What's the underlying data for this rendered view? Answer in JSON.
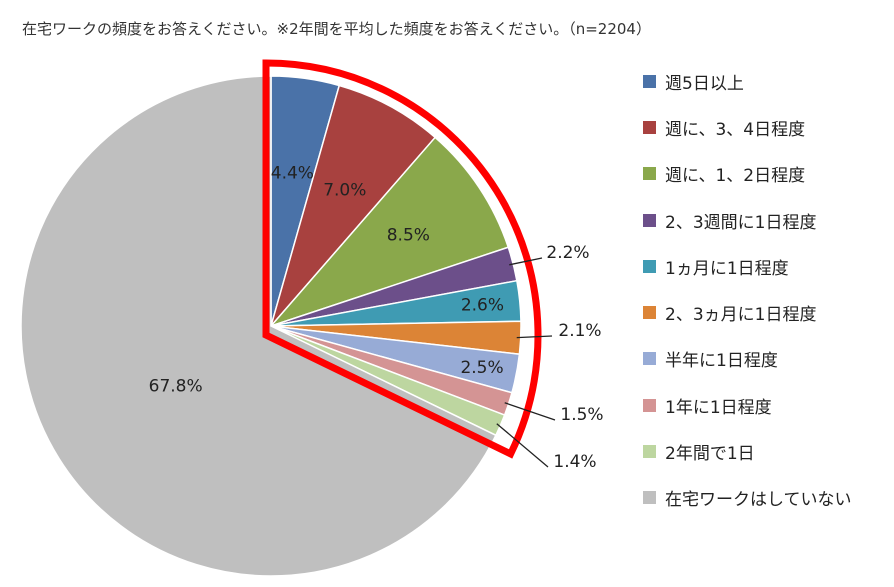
{
  "chart_data": {
    "type": "pie",
    "title": "在宅ワークの頻度をお答えください。※2年間を平均した頻度をお答えください。（n=2204）",
    "start_angle_deg": 0,
    "direction": "clockwise",
    "legend_position": "right",
    "highlight": {
      "color": "#ff0000",
      "covers_categories": [
        0,
        1,
        2,
        3,
        4,
        5,
        6,
        7,
        8
      ]
    },
    "slices": [
      {
        "label": "週5日以上",
        "value": 4.4,
        "display": "4.4%",
        "color": "#4a72a8"
      },
      {
        "label": "週に、3、4日程度",
        "value": 7.0,
        "display": "7.0%",
        "color": "#a8413f"
      },
      {
        "label": "週に、1、2日程度",
        "value": 8.5,
        "display": "8.5%",
        "color": "#8aa84b"
      },
      {
        "label": "2、3週間に1日程度",
        "value": 2.2,
        "display": "2.2%",
        "color": "#6c4f8a"
      },
      {
        "label": "1ヵ月に1日程度",
        "value": 2.6,
        "display": "2.6%",
        "color": "#3f9bb3"
      },
      {
        "label": "2、3ヵ月に1日程度",
        "value": 2.1,
        "display": "2.1%",
        "color": "#dc8436"
      },
      {
        "label": "半年に1日程度",
        "value": 2.5,
        "display": "2.5%",
        "color": "#97abd6"
      },
      {
        "label": "1年に1日程度",
        "value": 1.5,
        "display": "1.5%",
        "color": "#d49494"
      },
      {
        "label": "2年間で1日",
        "value": 1.4,
        "display": "1.4%",
        "color": "#bdd6a0"
      },
      {
        "label": "在宅ワークはしていない",
        "value": 67.8,
        "display": "67.8%",
        "color": "#bfbfbf"
      }
    ]
  }
}
